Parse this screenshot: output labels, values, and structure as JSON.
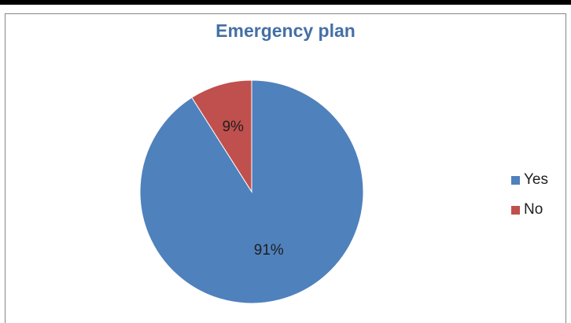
{
  "chart_data": {
    "type": "pie",
    "title": "Emergency plan",
    "categories": [
      "Yes",
      "No"
    ],
    "values": [
      91,
      9
    ],
    "data_labels": [
      "91%",
      "9%"
    ],
    "colors": [
      "#4f81bd",
      "#c0504d"
    ],
    "legend_position": "right"
  }
}
